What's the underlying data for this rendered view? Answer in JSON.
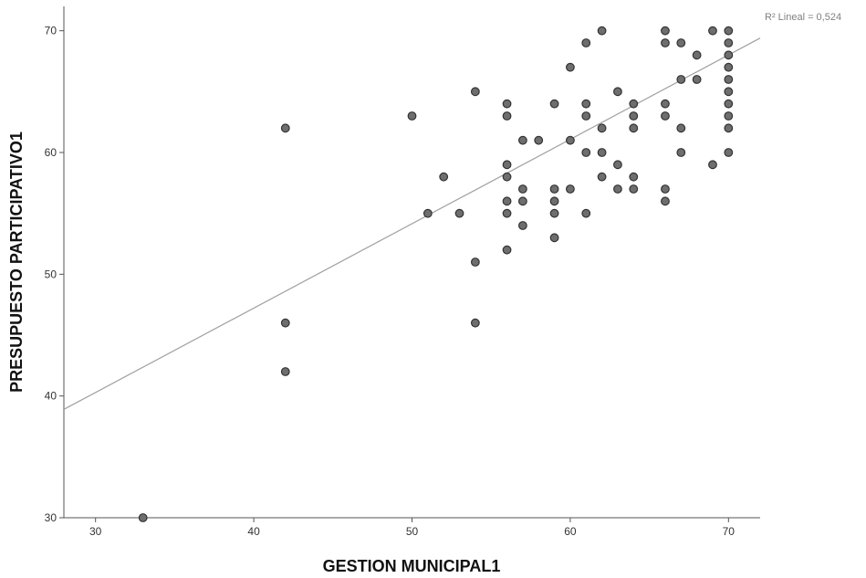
{
  "chart_data": {
    "type": "scatter",
    "xlabel": "GESTION MUNICIPAL1",
    "ylabel": "PRESUPUESTO PARTICIPATIVO1",
    "xlim": [
      28,
      72
    ],
    "ylim": [
      30,
      72
    ],
    "xticks": [
      30,
      40,
      50,
      60,
      70
    ],
    "yticks": [
      30,
      40,
      50,
      60,
      70
    ],
    "grid": false,
    "fit_line": {
      "label": "R² Lineal = 0,524",
      "x": [
        28,
        72
      ],
      "y": [
        38.9,
        69.4
      ],
      "color": "#a0a0a0"
    },
    "marker_color": "#6e6e6e",
    "series": [
      {
        "points": [
          [
            33,
            30
          ],
          [
            42,
            42
          ],
          [
            42,
            46
          ],
          [
            42,
            62
          ],
          [
            50,
            63
          ],
          [
            51,
            55
          ],
          [
            52,
            58
          ],
          [
            53,
            55
          ],
          [
            54,
            46
          ],
          [
            54,
            51
          ],
          [
            54,
            65
          ],
          [
            56,
            52
          ],
          [
            56,
            55
          ],
          [
            56,
            56
          ],
          [
            56,
            58
          ],
          [
            56,
            59
          ],
          [
            56,
            63
          ],
          [
            56,
            64
          ],
          [
            57,
            54
          ],
          [
            57,
            56
          ],
          [
            57,
            57
          ],
          [
            57,
            61
          ],
          [
            58,
            61
          ],
          [
            59,
            53
          ],
          [
            59,
            55
          ],
          [
            59,
            56
          ],
          [
            59,
            57
          ],
          [
            59,
            64
          ],
          [
            60,
            57
          ],
          [
            60,
            61
          ],
          [
            60,
            67
          ],
          [
            61,
            55
          ],
          [
            61,
            60
          ],
          [
            61,
            63
          ],
          [
            61,
            64
          ],
          [
            61,
            69
          ],
          [
            62,
            58
          ],
          [
            62,
            60
          ],
          [
            62,
            62
          ],
          [
            62,
            70
          ],
          [
            63,
            57
          ],
          [
            63,
            59
          ],
          [
            63,
            65
          ],
          [
            64,
            57
          ],
          [
            64,
            58
          ],
          [
            64,
            62
          ],
          [
            64,
            63
          ],
          [
            64,
            64
          ],
          [
            66,
            56
          ],
          [
            66,
            57
          ],
          [
            66,
            63
          ],
          [
            66,
            64
          ],
          [
            66,
            69
          ],
          [
            66,
            70
          ],
          [
            67,
            60
          ],
          [
            67,
            62
          ],
          [
            67,
            66
          ],
          [
            67,
            69
          ],
          [
            68,
            66
          ],
          [
            68,
            68
          ],
          [
            69,
            59
          ],
          [
            69,
            70
          ],
          [
            70,
            60
          ],
          [
            70,
            62
          ],
          [
            70,
            63
          ],
          [
            70,
            64
          ],
          [
            70,
            65
          ],
          [
            70,
            66
          ],
          [
            70,
            67
          ],
          [
            70,
            68
          ],
          [
            70,
            69
          ],
          [
            70,
            70
          ]
        ]
      }
    ]
  }
}
